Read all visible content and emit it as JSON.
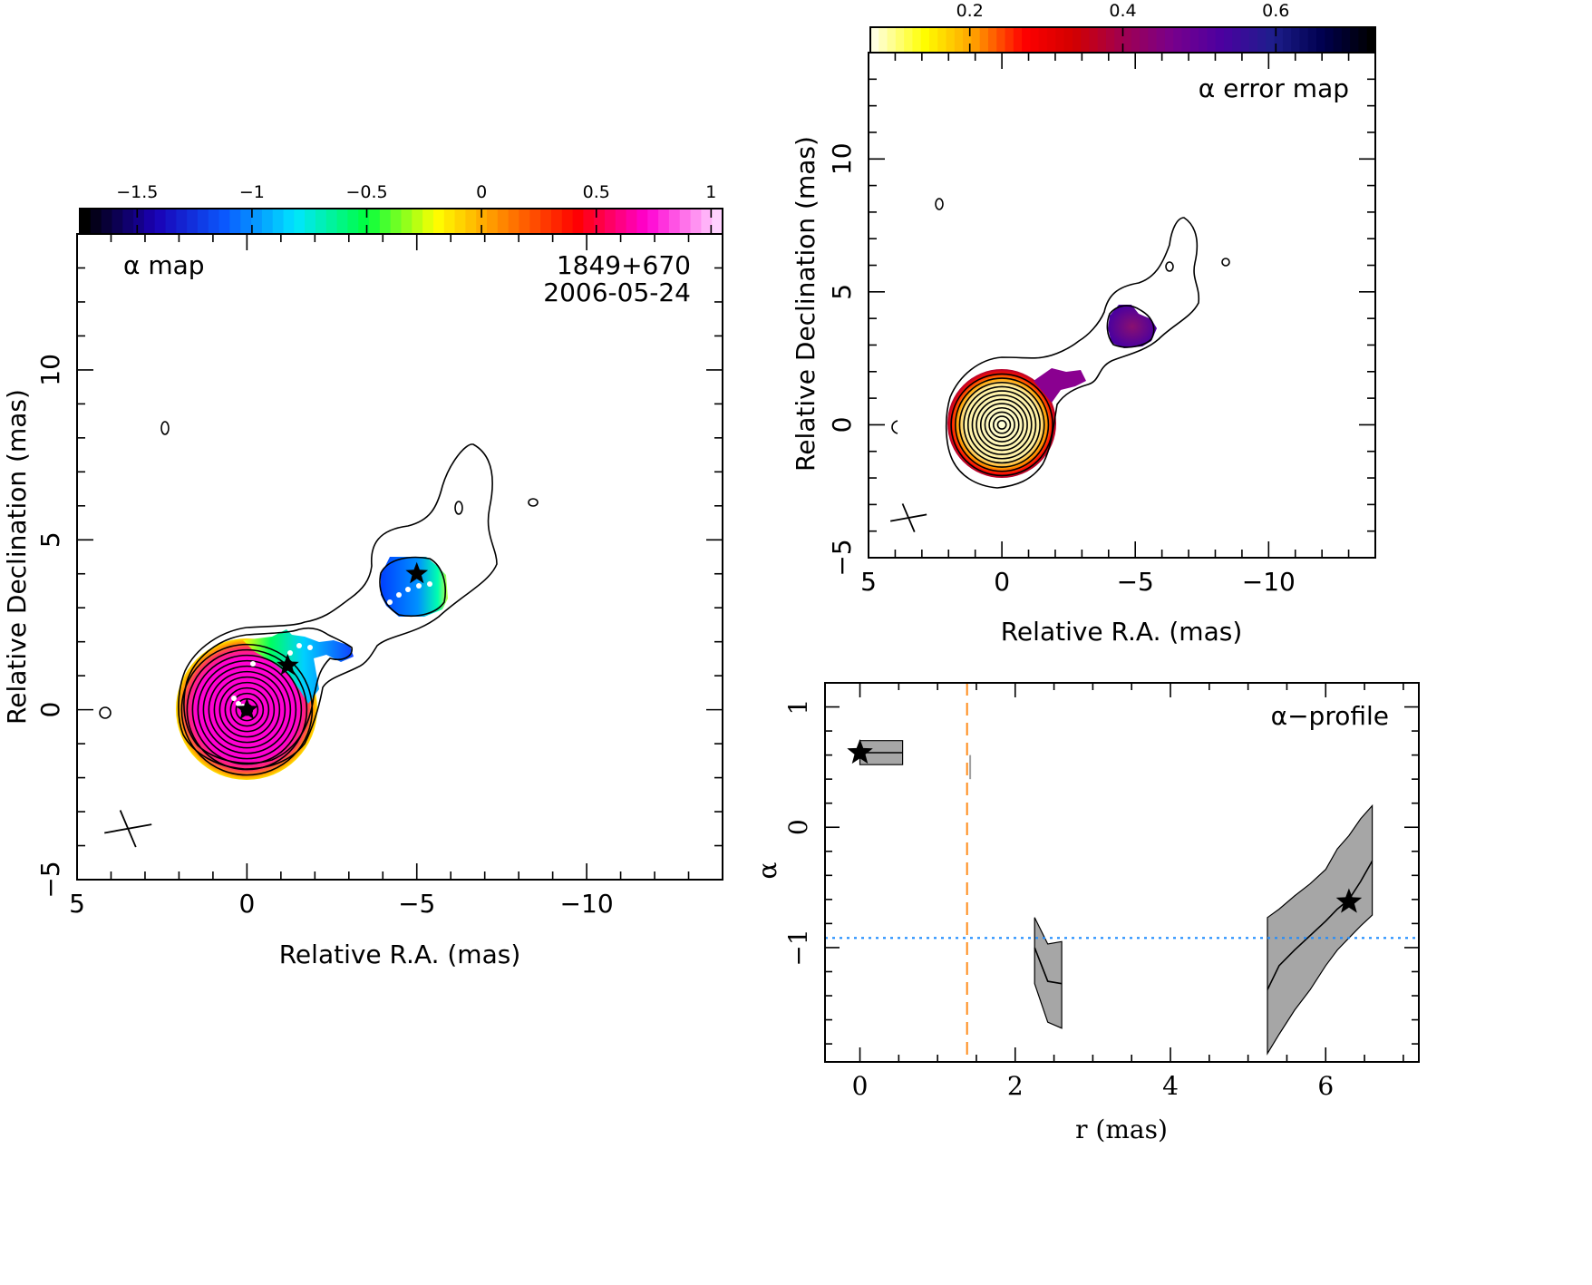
{
  "figure": {
    "source_name": "1849+670",
    "date": "2006-05-24"
  },
  "chart_data": [
    {
      "type": "heatmap",
      "panel": "alpha-map",
      "annotation": "α map",
      "xlabel": "Relative R.A. (mas)",
      "ylabel": "Relative Declination (mas)",
      "xlim": [
        5,
        -14
      ],
      "ylim": [
        -5,
        14
      ],
      "x_ticks": [
        5,
        0,
        -5,
        -10
      ],
      "y_ticks": [
        -5,
        0,
        5,
        10
      ],
      "colorbar": {
        "range": [
          -1.75,
          1.05
        ],
        "ticks": [
          -1.5,
          -1,
          -0.5,
          0,
          0.5,
          1
        ],
        "tick_labels": [
          "−1.5",
          "−1",
          "−0.5",
          "0",
          "0.5",
          "1"
        ],
        "colors": [
          "#000000",
          "#1a00b4",
          "#0a5aff",
          "#00e6ff",
          "#00ff40",
          "#ffff00",
          "#ff8000",
          "#ff0000",
          "#ff00d2",
          "#ffd2ff"
        ]
      },
      "regions": [
        {
          "name": "core",
          "center": [
            0,
            0
          ],
          "radius": 2.0,
          "alpha": 0.9
        },
        {
          "name": "inner-jet",
          "center": [
            -1.2,
            1.5
          ],
          "alpha": -0.5
        },
        {
          "name": "outer-knot",
          "center": [
            -4.9,
            3.7
          ],
          "alpha": -0.7
        }
      ],
      "stars": [
        {
          "x": 0,
          "y": 0
        },
        {
          "x": -1.2,
          "y": 1.3
        },
        {
          "x": -5.0,
          "y": 4.0
        }
      ],
      "beam_center": [
        3.5,
        -3.5
      ],
      "contour_levels_count": 12
    },
    {
      "type": "heatmap",
      "panel": "alpha-error-map",
      "annotation": "α error map",
      "xlabel": "Relative R.A. (mas)",
      "ylabel": "Relative Declination (mas)",
      "xlim": [
        5,
        -14
      ],
      "ylim": [
        -5,
        14
      ],
      "x_ticks": [
        5,
        0,
        -5,
        -10
      ],
      "y_ticks": [
        -5,
        0,
        5,
        10
      ],
      "colorbar": {
        "range": [
          0.07,
          0.73
        ],
        "ticks": [
          0.2,
          0.4,
          0.6
        ],
        "tick_labels": [
          "0.2",
          "0.4",
          "0.6"
        ],
        "colors": [
          "#ffffe0",
          "#ffff00",
          "#ffa000",
          "#ff0000",
          "#d20000",
          "#a00050",
          "#78008c",
          "#4b00a0",
          "#1e1e8c",
          "#000050",
          "#000000"
        ]
      },
      "regions": [
        {
          "name": "core",
          "center": [
            0,
            0
          ],
          "radius": 2.0,
          "error": 0.15
        },
        {
          "name": "outer-knot",
          "center": [
            -4.9,
            3.7
          ],
          "error": 0.45
        }
      ],
      "beam_center": [
        3.5,
        -3.5
      ],
      "contour_levels_count": 12
    },
    {
      "type": "line",
      "panel": "alpha-profile",
      "annotation": "α−profile",
      "xlabel": "r (mas)",
      "ylabel": "α",
      "xlim": [
        -0.45,
        7.2
      ],
      "ylim": [
        -1.95,
        1.2
      ],
      "x_ticks": [
        0,
        2,
        4,
        6
      ],
      "y_ticks": [
        -1,
        0,
        1
      ],
      "y_tick_labels": [
        "−1",
        "0",
        "1"
      ],
      "series": [
        {
          "x": [
            0.0,
            0.55
          ],
          "y": [
            0.62,
            0.62
          ],
          "lower": [
            0.52,
            0.52
          ],
          "upper": [
            0.72,
            0.72
          ]
        },
        {
          "x": [
            2.25,
            2.42,
            2.6
          ],
          "y": [
            -1.0,
            -1.28,
            -1.3
          ],
          "lower": [
            -1.3,
            -1.62,
            -1.67
          ],
          "upper": [
            -0.75,
            -0.97,
            -0.95
          ]
        },
        {
          "x": [
            5.25,
            5.4,
            5.6,
            5.8,
            6.0,
            6.15,
            6.3,
            6.45,
            6.6
          ],
          "y": [
            -1.35,
            -1.15,
            -1.02,
            -0.9,
            -0.78,
            -0.68,
            -0.6,
            -0.45,
            -0.28
          ],
          "lower": [
            -1.88,
            -1.72,
            -1.52,
            -1.35,
            -1.15,
            -1.02,
            -0.92,
            -0.82,
            -0.73
          ],
          "upper": [
            -0.75,
            -0.68,
            -0.57,
            -0.47,
            -0.35,
            -0.18,
            -0.07,
            0.07,
            0.18
          ]
        }
      ],
      "stars": [
        {
          "x": 0.0,
          "y": 0.62
        },
        {
          "x": 6.3,
          "y": -0.62
        }
      ],
      "reference_lines": {
        "horizontal_y": -0.92,
        "horizontal_color": "#1e8cff",
        "vertical_x": 1.38,
        "vertical_color": "#ff8c1a"
      },
      "extra_marker": {
        "x": 1.42,
        "y": 0.5,
        "color": "#a0a0a0"
      }
    }
  ]
}
